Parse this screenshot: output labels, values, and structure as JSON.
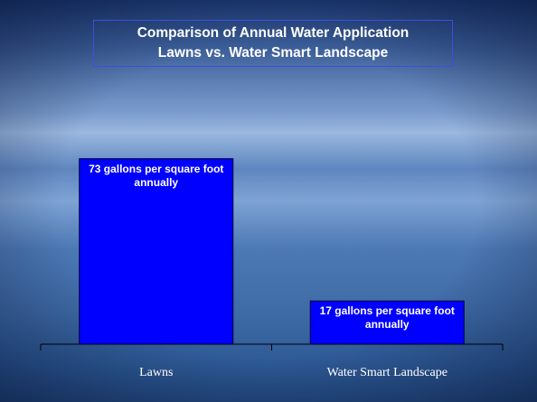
{
  "chart_data": {
    "type": "bar",
    "title": "Comparison of Annual Water Application",
    "subtitle": "Lawns vs. Water Smart Landscape",
    "categories": [
      "Lawns",
      "Water Smart Landscape"
    ],
    "values": [
      73,
      17
    ],
    "value_labels": [
      "73 gallons per square foot annually",
      "17 gallons per square foot annually"
    ],
    "color": "#0000ff",
    "ylim": [
      0,
      80
    ]
  }
}
